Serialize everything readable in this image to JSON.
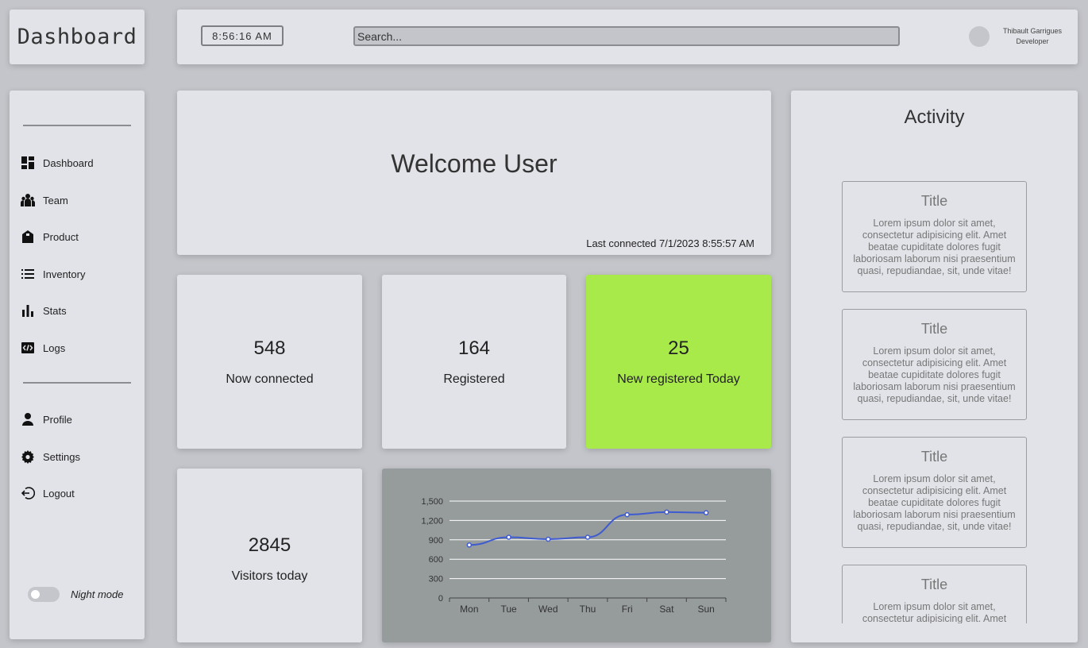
{
  "app": {
    "logo_text": "Dashboard"
  },
  "header": {
    "clock": "8:56:16 AM",
    "search_placeholder": "Search...",
    "user": {
      "name": "Thibault Garrigues",
      "role": "Developer"
    }
  },
  "sidebar": {
    "items": [
      {
        "label": "Dashboard",
        "icon": "dashboard-icon"
      },
      {
        "label": "Team",
        "icon": "team-icon"
      },
      {
        "label": "Product",
        "icon": "product-icon"
      },
      {
        "label": "Inventory",
        "icon": "list-icon"
      },
      {
        "label": "Stats",
        "icon": "bar-chart-icon"
      },
      {
        "label": "Logs",
        "icon": "code-icon"
      }
    ],
    "account_items": [
      {
        "label": "Profile",
        "icon": "person-icon"
      },
      {
        "label": "Settings",
        "icon": "gear-icon"
      },
      {
        "label": "Logout",
        "icon": "logout-icon"
      }
    ],
    "night_mode_label": "Night mode",
    "night_mode_on": false
  },
  "welcome": {
    "title": "Welcome User",
    "last_connected": "Last connected 7/1/2023 8:55:57 AM"
  },
  "stats": {
    "now_connected": {
      "value": "548",
      "label": "Now connected"
    },
    "registered": {
      "value": "164",
      "label": "Registered"
    },
    "new_today": {
      "value": "25",
      "label": "New registered Today",
      "color": "#a8ea4a"
    },
    "visitors": {
      "value": "2845",
      "label": "Visitors today"
    }
  },
  "chart_data": {
    "type": "line",
    "categories": [
      "Mon",
      "Tue",
      "Wed",
      "Thu",
      "Fri",
      "Sat",
      "Sun"
    ],
    "series": [
      {
        "values": [
          820,
          940,
          910,
          940,
          1290,
          1330,
          1320
        ],
        "color": "#3f5bd0"
      }
    ],
    "y_ticks": [
      "0",
      "300",
      "600",
      "900",
      "1,200",
      "1,500"
    ],
    "ylim": [
      0,
      1500
    ],
    "grid": true,
    "title": "",
    "xlabel": "",
    "ylabel": ""
  },
  "activity": {
    "title": "Activity",
    "cards": [
      {
        "title": "Title",
        "text": "Lorem ipsum dolor sit amet, consectetur adipisicing elit. Amet beatae cupiditate dolores fugit laboriosam laborum nisi praesentium quasi, repudiandae, sit, unde vitae!"
      },
      {
        "title": "Title",
        "text": "Lorem ipsum dolor sit amet, consectetur adipisicing elit. Amet beatae cupiditate dolores fugit laboriosam laborum nisi praesentium quasi, repudiandae, sit, unde vitae!"
      },
      {
        "title": "Title",
        "text": "Lorem ipsum dolor sit amet, consectetur adipisicing elit. Amet beatae cupiditate dolores fugit laboriosam laborum nisi praesentium quasi, repudiandae, sit, unde vitae!"
      },
      {
        "title": "Title",
        "text": "Lorem ipsum dolor sit amet, consectetur adipisicing elit. Amet beatae cupiditate dolores fugit laboriosam laborum nisi praesentium quasi, repudiandae, sit, unde vitae!"
      }
    ]
  }
}
